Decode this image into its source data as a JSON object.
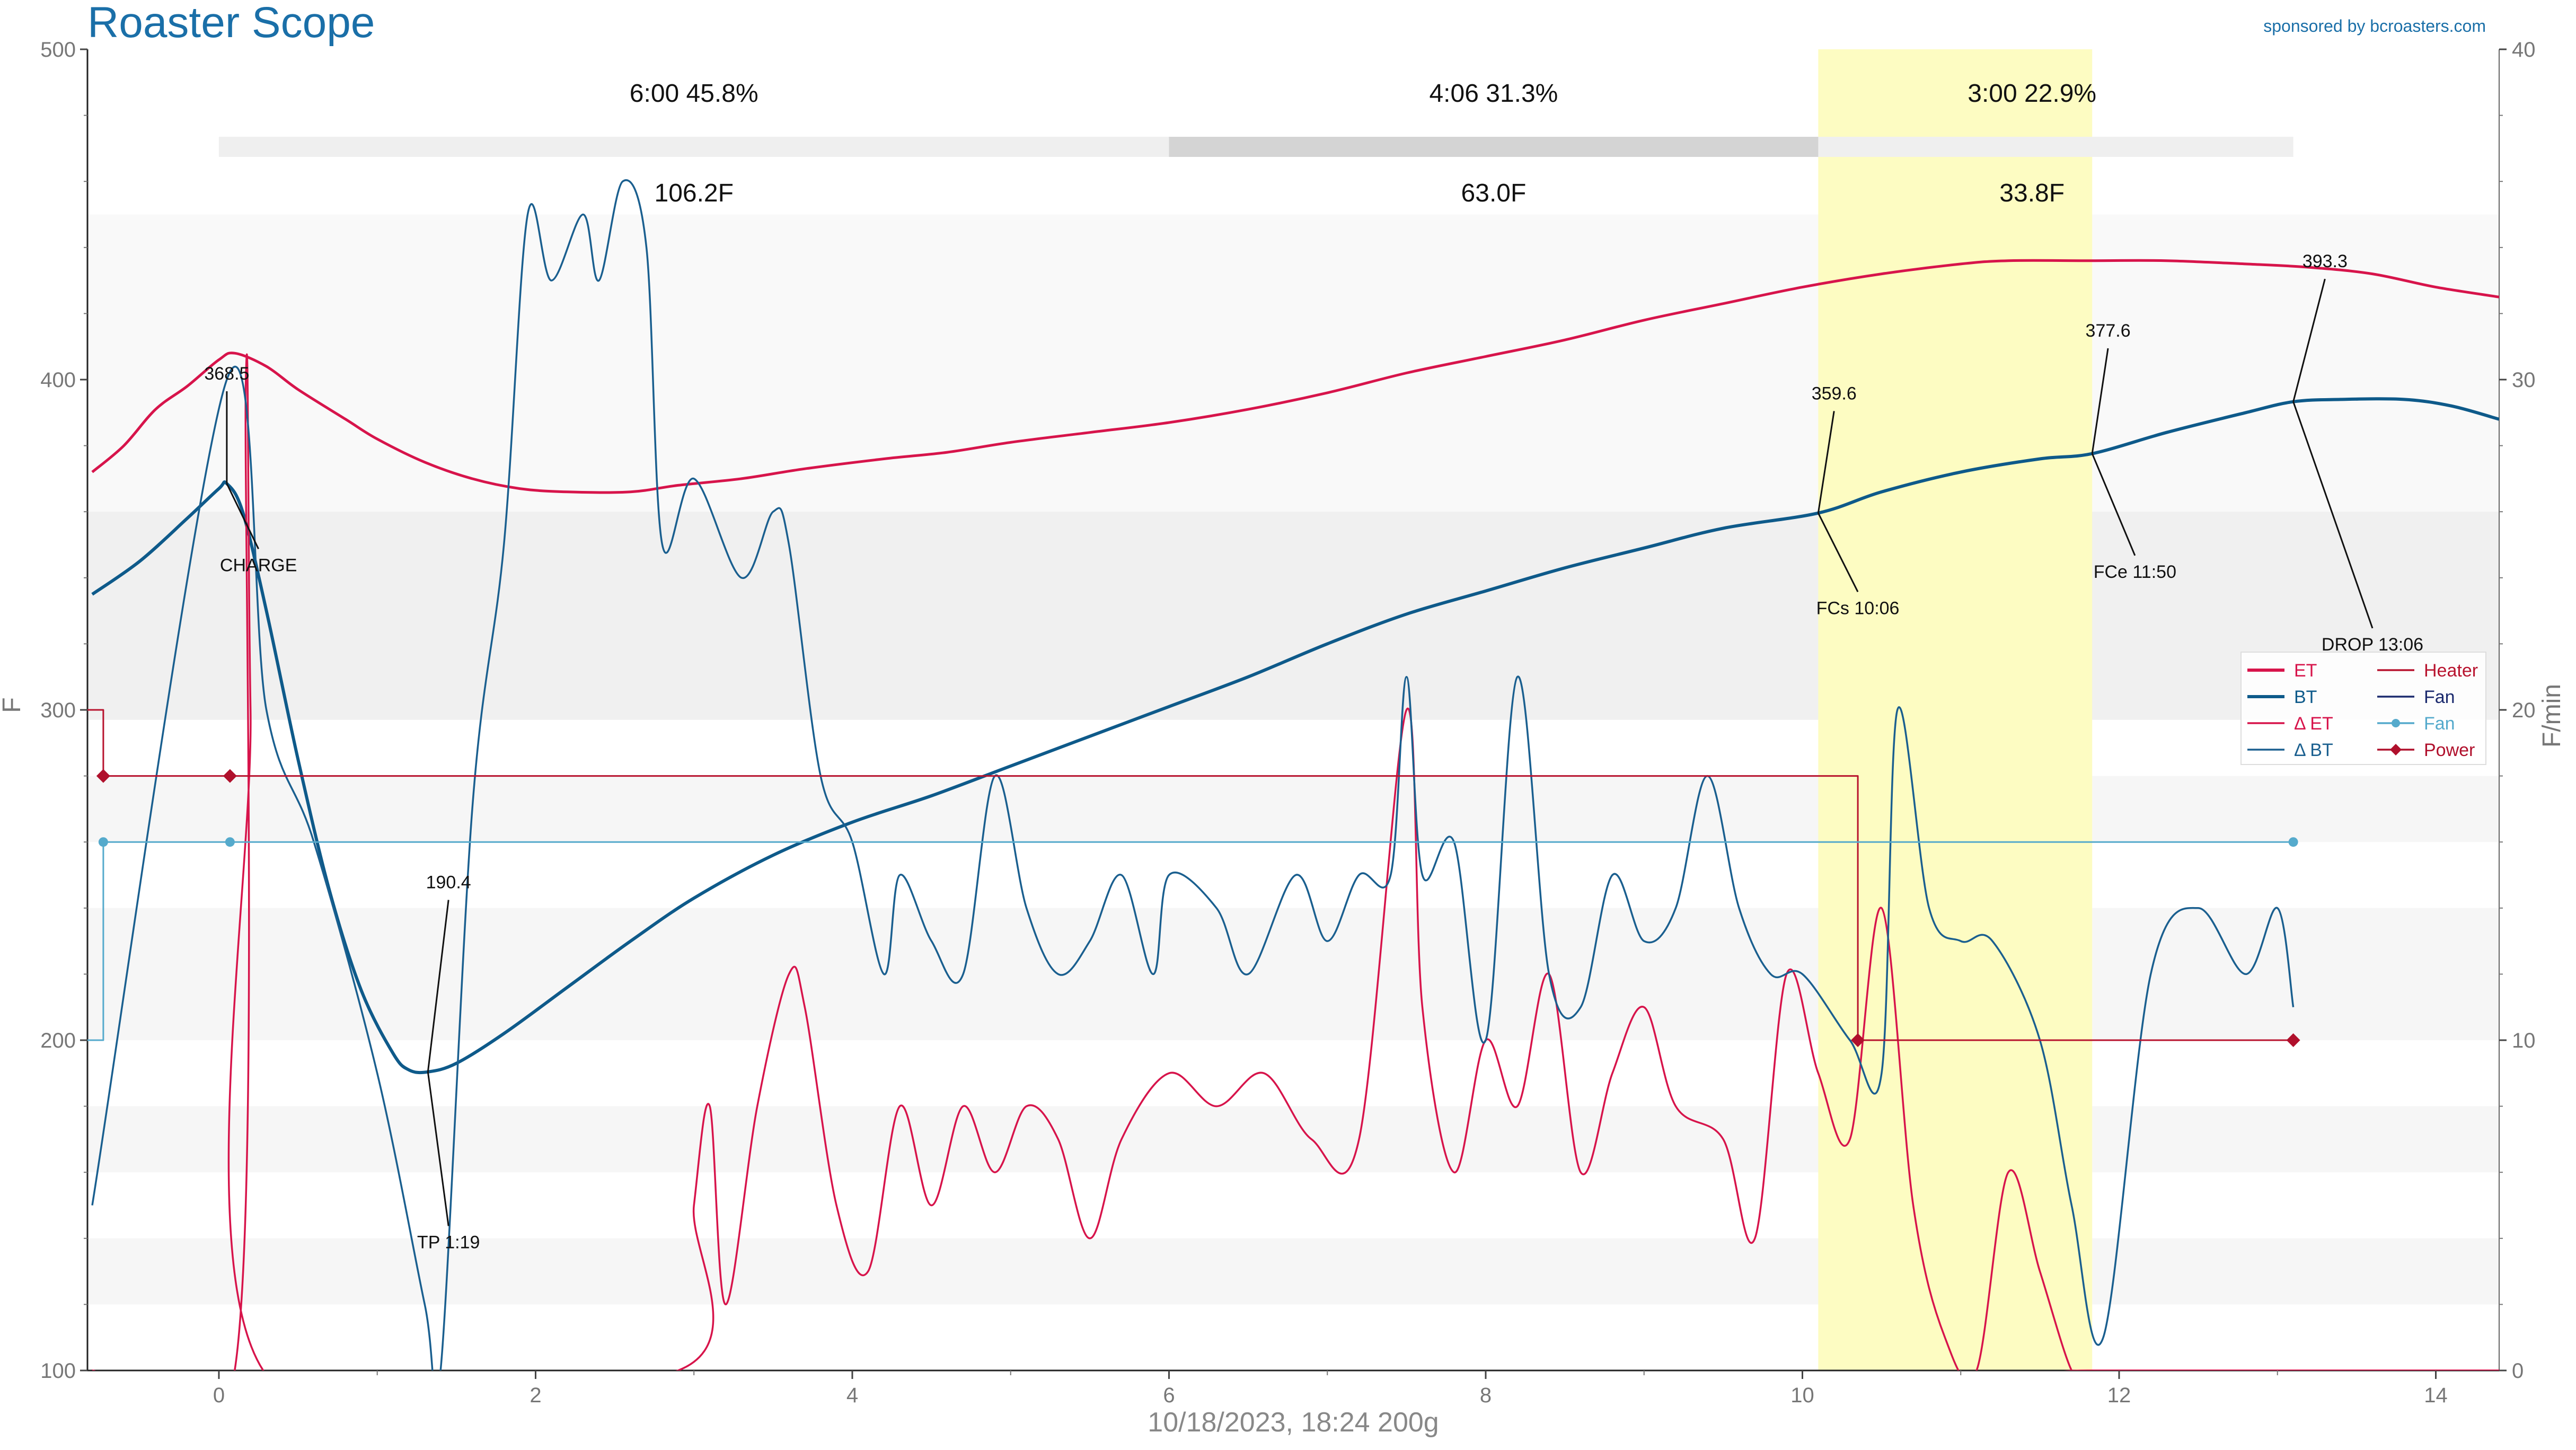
{
  "app": {
    "title": "Roaster Scope",
    "sponsor": "sponsored by bcroasters.com",
    "footer": "10/18/2023, 18:24   200g"
  },
  "colors": {
    "et": "#d7144b",
    "bt": "#0e5a8a",
    "delta_et": "#d7144b",
    "delta_bt": "#1a5f8f",
    "heater": "#b8132e",
    "fan_control": "#1b2a6e",
    "fan": "#55aacc",
    "power": "#b0102c",
    "phase_highlight": "#fdfcc2",
    "title": "#1a6fa8"
  },
  "chart_data": {
    "type": "line",
    "xlim": [
      -0.83,
      14.4
    ],
    "ylim_left": [
      100,
      500
    ],
    "ylim_right": [
      0,
      40
    ],
    "ylabel_left": "F",
    "ylabel_right": "F/min",
    "x_ticks": [
      0,
      2,
      4,
      6,
      8,
      10,
      12,
      14
    ],
    "y_ticks_left": [
      100,
      200,
      300,
      400,
      500
    ],
    "y_ticks_right": [
      0,
      10,
      20,
      30,
      40
    ],
    "grid": false,
    "legend_position": "right-middle",
    "phases": [
      {
        "time": "6:00",
        "percent": "45.8%",
        "delta_temp": "106.2F",
        "start": 0,
        "end": 6.0
      },
      {
        "time": "4:06",
        "percent": "31.3%",
        "delta_temp": "63.0F",
        "start": 6.0,
        "end": 10.1
      },
      {
        "time": "3:00",
        "percent": "22.9%",
        "delta_temp": "33.8F",
        "start": 10.1,
        "end": 13.1
      }
    ],
    "highlight_region": [
      10.1,
      11.83
    ],
    "series": [
      {
        "name": "ET",
        "key": "et",
        "axis": "left",
        "points": [
          [
            -0.8,
            372
          ],
          [
            -0.6,
            380
          ],
          [
            -0.4,
            391
          ],
          [
            -0.2,
            398
          ],
          [
            0,
            406
          ],
          [
            0.1,
            408
          ],
          [
            0.3,
            404
          ],
          [
            0.5,
            397
          ],
          [
            0.8,
            388
          ],
          [
            1.0,
            382
          ],
          [
            1.3,
            375
          ],
          [
            1.6,
            370
          ],
          [
            1.9,
            367
          ],
          [
            2.2,
            366
          ],
          [
            2.6,
            366
          ],
          [
            2.9,
            368
          ],
          [
            3.3,
            370
          ],
          [
            3.7,
            373
          ],
          [
            4.2,
            376
          ],
          [
            4.6,
            378
          ],
          [
            5.0,
            381
          ],
          [
            5.5,
            384
          ],
          [
            6.0,
            387
          ],
          [
            6.5,
            391
          ],
          [
            7.0,
            396
          ],
          [
            7.5,
            402
          ],
          [
            8.0,
            407
          ],
          [
            8.5,
            412
          ],
          [
            9.0,
            418
          ],
          [
            9.5,
            423
          ],
          [
            10.0,
            428
          ],
          [
            10.5,
            432
          ],
          [
            11.0,
            435
          ],
          [
            11.3,
            436
          ],
          [
            11.8,
            436
          ],
          [
            12.3,
            436
          ],
          [
            12.8,
            435
          ],
          [
            13.2,
            434
          ],
          [
            13.6,
            432
          ],
          [
            14.0,
            428
          ],
          [
            14.4,
            425
          ]
        ]
      },
      {
        "name": "BT",
        "key": "bt",
        "axis": "left",
        "points": [
          [
            -0.8,
            335
          ],
          [
            -0.5,
            345
          ],
          [
            -0.2,
            358
          ],
          [
            0,
            367
          ],
          [
            0.05,
            368.5
          ],
          [
            0.15,
            360
          ],
          [
            0.3,
            330
          ],
          [
            0.5,
            285
          ],
          [
            0.7,
            245
          ],
          [
            0.9,
            215
          ],
          [
            1.1,
            196
          ],
          [
            1.2,
            191
          ],
          [
            1.32,
            190.4
          ],
          [
            1.5,
            193
          ],
          [
            1.8,
            202
          ],
          [
            2.2,
            216
          ],
          [
            2.6,
            230
          ],
          [
            3.0,
            243
          ],
          [
            3.5,
            256
          ],
          [
            4.0,
            266
          ],
          [
            4.5,
            274
          ],
          [
            5.0,
            283
          ],
          [
            5.5,
            292
          ],
          [
            6.0,
            301
          ],
          [
            6.5,
            310
          ],
          [
            7.0,
            320
          ],
          [
            7.5,
            329
          ],
          [
            8.0,
            336
          ],
          [
            8.5,
            343
          ],
          [
            9.0,
            349
          ],
          [
            9.5,
            355
          ],
          [
            10.1,
            359.6
          ],
          [
            10.5,
            366
          ],
          [
            11.0,
            372
          ],
          [
            11.5,
            376
          ],
          [
            11.83,
            377.6
          ],
          [
            12.3,
            384
          ],
          [
            12.8,
            390
          ],
          [
            13.1,
            393.3
          ],
          [
            13.4,
            394
          ],
          [
            13.8,
            394
          ],
          [
            14.1,
            392
          ],
          [
            14.4,
            388
          ]
        ]
      },
      {
        "name": "Δ ET",
        "key": "delta_et",
        "axis": "right",
        "points": [
          [
            -0.8,
            0
          ],
          [
            0.1,
            0
          ],
          [
            0.17,
            30
          ],
          [
            0.2,
            20
          ],
          [
            0.28,
            0
          ],
          [
            2.9,
            0
          ],
          [
            3.0,
            5
          ],
          [
            3.1,
            8
          ],
          [
            3.2,
            2
          ],
          [
            3.4,
            8
          ],
          [
            3.6,
            12
          ],
          [
            3.7,
            11
          ],
          [
            3.9,
            5
          ],
          [
            4.1,
            3
          ],
          [
            4.3,
            8
          ],
          [
            4.5,
            5
          ],
          [
            4.7,
            8
          ],
          [
            4.9,
            6
          ],
          [
            5.1,
            8
          ],
          [
            5.3,
            7
          ],
          [
            5.5,
            4
          ],
          [
            5.7,
            7
          ],
          [
            6.0,
            9
          ],
          [
            6.3,
            8
          ],
          [
            6.6,
            9
          ],
          [
            6.9,
            7
          ],
          [
            7.2,
            7
          ],
          [
            7.5,
            20
          ],
          [
            7.6,
            11
          ],
          [
            7.8,
            6
          ],
          [
            8.0,
            10
          ],
          [
            8.2,
            8
          ],
          [
            8.4,
            12
          ],
          [
            8.6,
            6
          ],
          [
            8.8,
            9
          ],
          [
            9.0,
            11
          ],
          [
            9.2,
            8
          ],
          [
            9.5,
            7
          ],
          [
            9.7,
            4
          ],
          [
            9.9,
            12
          ],
          [
            10.1,
            9
          ],
          [
            10.3,
            7
          ],
          [
            10.5,
            14
          ],
          [
            10.7,
            5
          ],
          [
            10.9,
            1
          ],
          [
            11.1,
            0
          ],
          [
            11.3,
            6
          ],
          [
            11.5,
            3
          ],
          [
            11.7,
            0
          ],
          [
            11.8,
            0
          ],
          [
            14.4,
            0
          ]
        ]
      },
      {
        "name": "Δ BT",
        "key": "delta_bt",
        "axis": "right",
        "points": [
          [
            -0.8,
            5
          ],
          [
            0.05,
            30
          ],
          [
            0.3,
            20
          ],
          [
            0.6,
            16
          ],
          [
            1.0,
            9
          ],
          [
            1.3,
            2
          ],
          [
            1.4,
            0
          ],
          [
            1.6,
            17
          ],
          [
            1.8,
            25
          ],
          [
            1.95,
            35
          ],
          [
            2.1,
            33
          ],
          [
            2.3,
            35
          ],
          [
            2.4,
            33
          ],
          [
            2.55,
            36
          ],
          [
            2.7,
            34
          ],
          [
            2.8,
            25
          ],
          [
            3.0,
            27
          ],
          [
            3.3,
            24
          ],
          [
            3.5,
            26
          ],
          [
            3.6,
            25
          ],
          [
            3.8,
            18
          ],
          [
            4.0,
            16
          ],
          [
            4.2,
            12
          ],
          [
            4.3,
            15
          ],
          [
            4.5,
            13
          ],
          [
            4.7,
            12
          ],
          [
            4.9,
            18
          ],
          [
            5.1,
            14
          ],
          [
            5.3,
            12
          ],
          [
            5.5,
            13
          ],
          [
            5.7,
            15
          ],
          [
            5.9,
            12
          ],
          [
            6.0,
            15
          ],
          [
            6.3,
            14
          ],
          [
            6.5,
            12
          ],
          [
            6.8,
            15
          ],
          [
            7.0,
            13
          ],
          [
            7.2,
            15
          ],
          [
            7.4,
            15
          ],
          [
            7.5,
            21
          ],
          [
            7.6,
            15
          ],
          [
            7.8,
            16
          ],
          [
            8.0,
            10
          ],
          [
            8.2,
            21
          ],
          [
            8.4,
            12
          ],
          [
            8.6,
            11
          ],
          [
            8.8,
            15
          ],
          [
            9.0,
            13
          ],
          [
            9.2,
            14
          ],
          [
            9.4,
            18
          ],
          [
            9.6,
            14
          ],
          [
            9.8,
            12
          ],
          [
            10.0,
            12
          ],
          [
            10.3,
            10
          ],
          [
            10.5,
            9
          ],
          [
            10.6,
            20
          ],
          [
            10.8,
            14
          ],
          [
            11.0,
            13
          ],
          [
            11.2,
            13
          ],
          [
            11.5,
            10
          ],
          [
            11.7,
            5
          ],
          [
            11.9,
            1
          ],
          [
            12.2,
            12
          ],
          [
            12.5,
            14
          ],
          [
            12.8,
            12
          ],
          [
            13.0,
            14
          ],
          [
            13.1,
            11
          ]
        ]
      },
      {
        "name": "Heater",
        "key": "heater",
        "axis": "left",
        "points": [
          [
            -0.83,
            300
          ],
          [
            -0.73,
            300
          ],
          [
            -0.73,
            280
          ],
          [
            10.35,
            280
          ],
          [
            10.35,
            200
          ],
          [
            13.1,
            200
          ]
        ]
      },
      {
        "name": "Fan",
        "key": "fan_control",
        "axis": "left",
        "points": []
      },
      {
        "name": "Fan",
        "key": "fan",
        "axis": "left",
        "points": [
          [
            -0.83,
            200
          ],
          [
            -0.73,
            200
          ],
          [
            -0.73,
            260
          ],
          [
            13.1,
            260
          ]
        ],
        "markers": [
          [
            -0.73,
            260
          ],
          [
            0.07,
            260
          ],
          [
            13.1,
            260
          ]
        ]
      },
      {
        "name": "Power",
        "key": "power",
        "axis": "left",
        "points": [],
        "markers": [
          [
            -0.73,
            280
          ],
          [
            0.07,
            280
          ],
          [
            10.35,
            200
          ],
          [
            13.1,
            200
          ]
        ]
      }
    ],
    "events": [
      {
        "label": "CHARGE",
        "value": "368.5",
        "x": 0.05,
        "y": 368.5,
        "value_at": [
          0.05,
          400
        ],
        "label_at": [
          0.25,
          342
        ]
      },
      {
        "label": "TP 1:19",
        "value": "190.4",
        "x": 1.32,
        "y": 190.4,
        "value_at": [
          1.45,
          246
        ],
        "label_at": [
          1.45,
          137
        ]
      },
      {
        "label": "FCs 10:06",
        "value": "359.6",
        "x": 10.1,
        "y": 359.6,
        "value_at": [
          10.2,
          394
        ],
        "label_at": [
          10.35,
          329
        ]
      },
      {
        "label": "FCe 11:50",
        "value": "377.6",
        "x": 11.83,
        "y": 377.6,
        "value_at": [
          11.93,
          413
        ],
        "label_at": [
          12.1,
          340
        ]
      },
      {
        "label": "DROP 13:06",
        "value": "393.3",
        "x": 13.1,
        "y": 393.3,
        "value_at": [
          13.3,
          434
        ],
        "label_at": [
          13.6,
          318
        ]
      }
    ]
  }
}
